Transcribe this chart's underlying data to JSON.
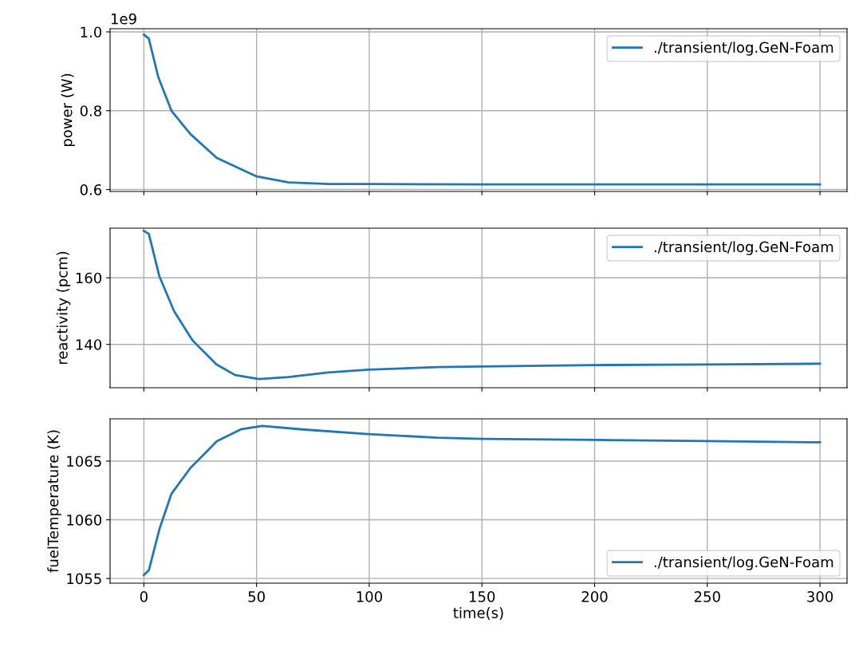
{
  "chart_data": [
    {
      "type": "line",
      "ylabel": "power (W)",
      "annotations": [
        "1e9"
      ],
      "legend": "top right",
      "grid": true,
      "tick_labels": "y",
      "xlim": [
        -15,
        312
      ],
      "xticks": [
        0,
        50,
        100,
        150,
        200,
        250,
        300
      ],
      "ylim": [
        0.595,
        1.008
      ],
      "yticks": [
        0.6,
        0.8,
        {
          "value": 1.0,
          "label": "1.0"
        }
      ],
      "series": [
        {
          "name": "./transient/log.GeN-Foam",
          "color": "#1f77b4",
          "x": [
            0,
            2.2,
            6.4,
            12.3,
            20.6,
            32.4,
            50.1,
            64.2,
            81.9,
            100,
            150,
            200,
            250,
            300
          ],
          "values": [
            0.993,
            0.983,
            0.885,
            0.799,
            0.741,
            0.68,
            0.633,
            0.618,
            0.614,
            0.614,
            0.613,
            0.613,
            0.613,
            0.613
          ]
        }
      ]
    },
    {
      "type": "line",
      "ylabel": "reactivity (pcm)",
      "legend": "top right",
      "grid": true,
      "tick_labels": "y",
      "xlim": [
        -15,
        312
      ],
      "xticks": [
        0,
        50,
        100,
        150,
        200,
        250,
        300
      ],
      "ylim": [
        127.0,
        174.9
      ],
      "yticks": [
        140,
        160
      ],
      "series": [
        {
          "name": "./transient/log.GeN-Foam",
          "color": "#1f77b4",
          "x": [
            0,
            2.2,
            6.9,
            13.4,
            21.6,
            32.2,
            40.5,
            51.1,
            64.1,
            81.8,
            99.5,
            130.3,
            150,
            200,
            250,
            300
          ],
          "values": [
            174.1,
            173.2,
            160.4,
            150.0,
            141.2,
            134.0,
            130.8,
            129.6,
            130.2,
            131.6,
            132.4,
            133.2,
            133.4,
            133.8,
            134.0,
            134.2
          ]
        }
      ]
    },
    {
      "type": "line",
      "xlabel": "time(s)",
      "ylabel": "fuelTemperature (K)",
      "legend": "bottom right",
      "grid": true,
      "xlim": [
        -15,
        312
      ],
      "xticks": [
        0,
        50,
        100,
        150,
        200,
        250,
        300
      ],
      "ylim": [
        1054.6,
        1068.6
      ],
      "yticks": [
        1055,
        1060,
        1065
      ],
      "series": [
        {
          "name": "./transient/log.GeN-Foam",
          "color": "#1f77b4",
          "x": [
            0,
            2.2,
            6.9,
            12.2,
            20.6,
            32.4,
            43,
            52.5,
            70.2,
            99.5,
            130.3,
            150,
            200,
            250,
            300
          ],
          "values": [
            1055.3,
            1055.7,
            1059.2,
            1062.2,
            1064.4,
            1066.7,
            1067.7,
            1068.0,
            1067.7,
            1067.3,
            1067.0,
            1066.9,
            1066.8,
            1066.7,
            1066.6
          ]
        }
      ]
    }
  ]
}
